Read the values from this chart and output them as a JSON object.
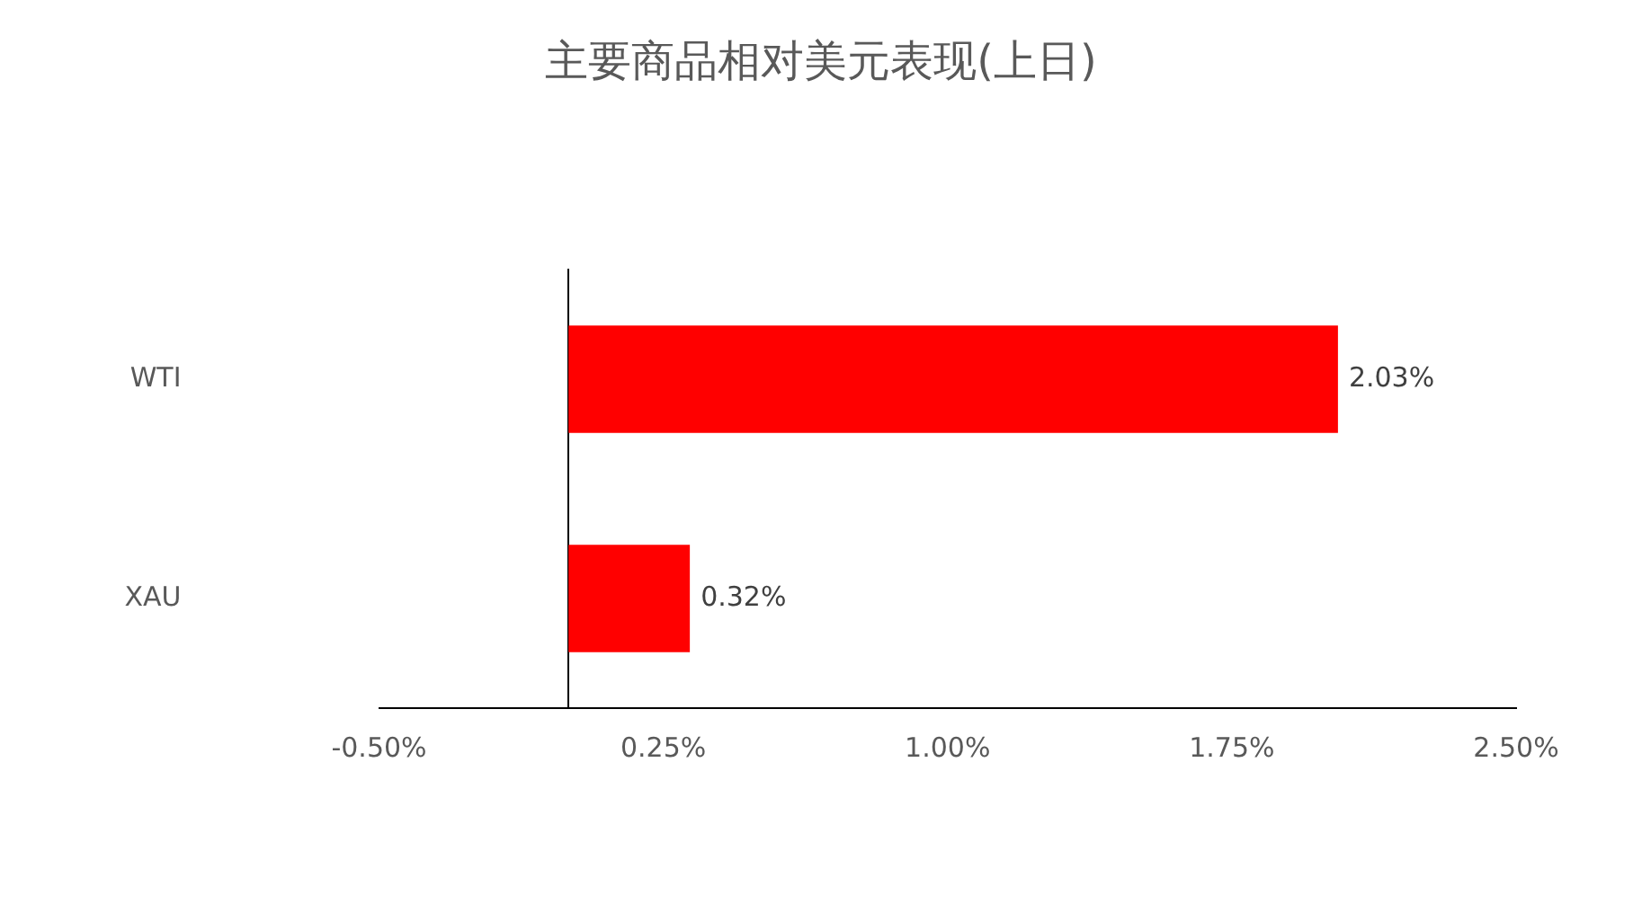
{
  "chart_data": {
    "type": "bar",
    "orientation": "horizontal",
    "title": "主要商品相对美元表现(上日)",
    "categories": [
      "WTI",
      "XAU"
    ],
    "values": [
      2.03,
      0.32
    ],
    "color": "#ff0000",
    "value_labels": [
      "2.03%",
      "0.32%"
    ],
    "xlim": [
      -0.5,
      2.5
    ],
    "xticks": [
      {
        "value": -0.5,
        "label": "-0.50%"
      },
      {
        "value": 0.25,
        "label": "0.25%"
      },
      {
        "value": 1.0,
        "label": "1.00%"
      },
      {
        "value": 1.75,
        "label": "1.75%"
      },
      {
        "value": 2.5,
        "label": "2.50%"
      }
    ],
    "grid": false,
    "legend": false
  }
}
